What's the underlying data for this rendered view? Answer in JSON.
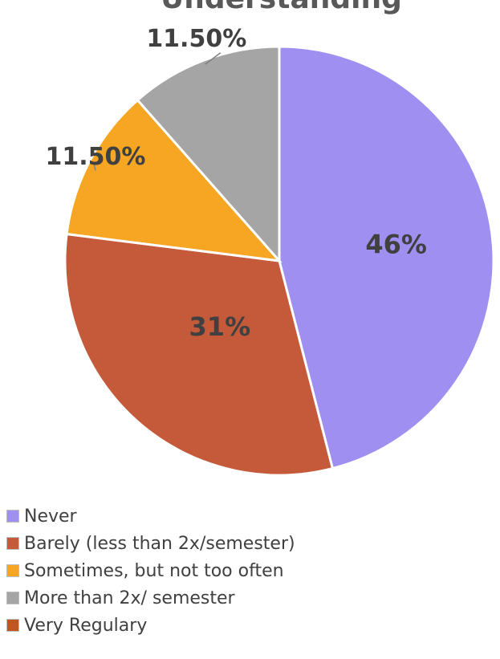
{
  "chart_data": {
    "type": "pie",
    "title": "Understanding",
    "categories": [
      "Never",
      "Barely (less than 2x/semester)",
      "Sometimes, but not too often",
      "More than 2x/ semester",
      "Very Regulary"
    ],
    "values": [
      46,
      31,
      11.5,
      11.5,
      0
    ],
    "data_labels": [
      "46%",
      "31%",
      "11.50%",
      "11.50%",
      ""
    ],
    "colors": [
      "#9e8ff0",
      "#c55a3b",
      "#f6a623",
      "#a5a5a5",
      "#c0571f"
    ],
    "legend_position": "bottom-left",
    "start_angle_deg": 0,
    "direction": "clockwise"
  }
}
